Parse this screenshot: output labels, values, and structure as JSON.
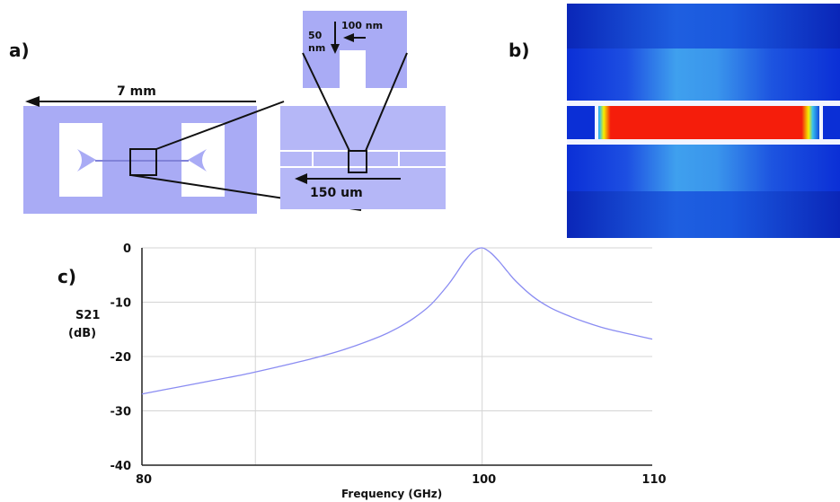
{
  "panels": {
    "a_label": "a)",
    "b_label": "b)",
    "c_label": "c)"
  },
  "schematic": {
    "length_overall": "7 mm",
    "length_zoom": "150 um",
    "gap_width": "100 nm",
    "gap_height_line1": "50",
    "gap_height_line2": "nm",
    "colors": {
      "metal": "#a9abf5",
      "substrate": "#ffffff",
      "outline": "#111111"
    }
  },
  "heatmap": {
    "colors": {
      "field_low": "#0b2fd6",
      "field_mid": "#3fa0ee",
      "field_high": "#f51d0b",
      "edge": "#f5f000"
    }
  },
  "chart_data": {
    "type": "line",
    "title": "",
    "xlabel": "Frequency (GHz)",
    "ylabel_line1": "S21",
    "ylabel_line2": "(dB)",
    "xlim": [
      80,
      110
    ],
    "ylim": [
      -40,
      0
    ],
    "x_ticks": [
      80,
      100,
      110
    ],
    "y_ticks": [
      0,
      -10,
      -20,
      -30,
      -40
    ],
    "grid": true,
    "series": [
      {
        "color": "#8a8cf2",
        "x": [
          80,
          82,
          84,
          86,
          88,
          90,
          92,
          94,
          95,
          96,
          97,
          98,
          98.5,
          99,
          99.5,
          100,
          100.5,
          101,
          101.5,
          102,
          103,
          104,
          105,
          106,
          107,
          108,
          109,
          110
        ],
        "y": [
          -26.9,
          -25.7,
          -24.5,
          -23.3,
          -21.9,
          -20.4,
          -18.6,
          -16.3,
          -14.8,
          -12.9,
          -10.4,
          -6.8,
          -4.6,
          -2.3,
          -0.6,
          0,
          -0.9,
          -2.5,
          -4.4,
          -6.2,
          -9.0,
          -11.0,
          -12.4,
          -13.6,
          -14.6,
          -15.4,
          -16.1,
          -16.8
        ]
      }
    ]
  }
}
